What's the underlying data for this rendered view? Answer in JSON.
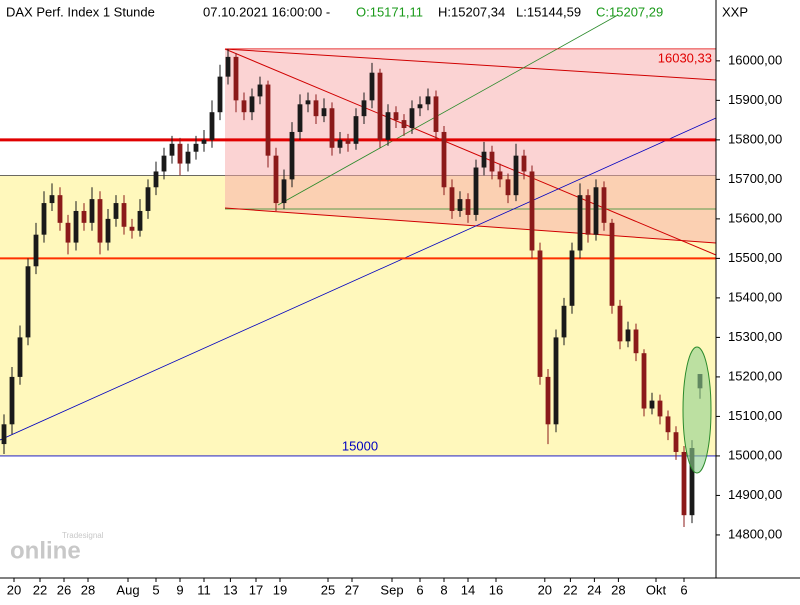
{
  "header": {
    "name": "DAX Perf. Index 1 Stunde",
    "datetime": "07.10.2021 16:00:00 -",
    "open": "O:15171,11",
    "high": "H:15207,34",
    "low": "L:15144,59",
    "close": "C:15207,29",
    "symbol": "XXP"
  },
  "watermark": {
    "brand": "online",
    "vendor": "Tradesignal"
  },
  "chart_data": {
    "type": "candlestick",
    "open": [
      15030,
      15080,
      15200,
      15300,
      15480,
      15560,
      15640,
      15660,
      15590,
      15540,
      15620,
      15590,
      15650,
      15540,
      15600,
      15640,
      15580,
      15570,
      15620,
      15680,
      15720,
      15760,
      15790,
      15740,
      15770,
      15790,
      15800,
      15870,
      15960,
      16010,
      15900,
      15870,
      15910,
      15940,
      15760,
      15640,
      15700,
      15820,
      15890,
      15900,
      15860,
      15880,
      15780,
      15800,
      15790,
      15860,
      15900,
      15970,
      15800,
      15870,
      15850,
      15830,
      15880,
      15890,
      15910,
      15820,
      15680,
      15620,
      15650,
      15610,
      15730,
      15770,
      15720,
      15700,
      15660,
      15760,
      15720,
      15520,
      15200,
      15080,
      15300,
      15380,
      15520,
      15660,
      15560,
      15680,
      15590,
      15380,
      15290,
      15320,
      15260,
      15120,
      15140,
      15100,
      15060,
      15010,
      14850,
      15171.11
    ],
    "high": [
      15105,
      15225,
      15330,
      15500,
      15590,
      15670,
      15690,
      15680,
      15610,
      15645,
      15640,
      15680,
      15670,
      15625,
      15660,
      15660,
      15600,
      15650,
      15700,
      15745,
      15780,
      15810,
      15805,
      15790,
      15810,
      15825,
      15900,
      15990,
      16030.33,
      16020,
      15920,
      15930,
      15960,
      15950,
      15780,
      15725,
      15845,
      15915,
      15920,
      15915,
      15905,
      15895,
      15820,
      15815,
      15880,
      15920,
      15995,
      15980,
      15890,
      15885,
      15865,
      15900,
      15910,
      15930,
      15925,
      15835,
      15700,
      15670,
      15665,
      15750,
      15795,
      15785,
      15740,
      15715,
      15790,
      15775,
      15735,
      15540,
      15220,
      15320,
      15400,
      15540,
      15690,
      15675,
      15700,
      15695,
      15600,
      15395,
      15340,
      15335,
      15270,
      15160,
      15155,
      15115,
      15075,
      15025,
      15040,
      15207.34
    ],
    "low": [
      15005,
      15055,
      15180,
      15280,
      15460,
      15540,
      15620,
      15570,
      15510,
      15520,
      15570,
      15570,
      15510,
      15520,
      15580,
      15560,
      15550,
      15555,
      15600,
      15660,
      15700,
      15740,
      15710,
      15720,
      15750,
      15770,
      15780,
      15850,
      15940,
      15870,
      15850,
      15850,
      15890,
      15730,
      15620,
      15625,
      15680,
      15800,
      15870,
      15840,
      15845,
      15760,
      15765,
      15770,
      15775,
      15840,
      15880,
      15780,
      15785,
      15830,
      15810,
      15815,
      15860,
      15875,
      15800,
      15660,
      15600,
      15605,
      15590,
      15595,
      15710,
      15700,
      15680,
      15640,
      15645,
      15700,
      15500,
      15180,
      15030,
      15060,
      15280,
      15360,
      15500,
      15540,
      15545,
      15570,
      15360,
      15270,
      15275,
      15240,
      15100,
      15105,
      15080,
      15040,
      14990,
      14820,
      14830,
      15144.59
    ],
    "close": [
      15080,
      15200,
      15300,
      15480,
      15560,
      15640,
      15660,
      15590,
      15540,
      15620,
      15590,
      15650,
      15540,
      15600,
      15640,
      15580,
      15570,
      15620,
      15680,
      15720,
      15760,
      15790,
      15740,
      15770,
      15790,
      15800,
      15870,
      15960,
      16010,
      15900,
      15870,
      15910,
      15940,
      15760,
      15640,
      15700,
      15820,
      15890,
      15900,
      15860,
      15880,
      15780,
      15800,
      15790,
      15860,
      15900,
      15970,
      15800,
      15870,
      15850,
      15830,
      15880,
      15890,
      15910,
      15820,
      15680,
      15620,
      15650,
      15610,
      15730,
      15770,
      15720,
      15700,
      15660,
      15760,
      15720,
      15520,
      15200,
      15080,
      15300,
      15380,
      15520,
      15660,
      15560,
      15680,
      15590,
      15380,
      15290,
      15320,
      15260,
      15120,
      15140,
      15100,
      15060,
      15010,
      14850,
      15020,
      15207.29
    ],
    "up_color": "#1a1a1a",
    "down_color": "#8b1a1a",
    "xlim": [
      -0.5,
      89
    ],
    "xticks": [
      {
        "value": 1.25,
        "label": "20"
      },
      {
        "value": 4.5,
        "label": "22"
      },
      {
        "value": 7.5,
        "label": "26"
      },
      {
        "value": 10.5,
        "label": "28"
      },
      {
        "value": 15.5,
        "label": "Aug"
      },
      {
        "value": 19,
        "label": "5"
      },
      {
        "value": 22,
        "label": "9"
      },
      {
        "value": 25,
        "label": "11"
      },
      {
        "value": 28.3,
        "label": "13"
      },
      {
        "value": 31.5,
        "label": "17"
      },
      {
        "value": 34.5,
        "label": "19"
      },
      {
        "value": 40.5,
        "label": "25"
      },
      {
        "value": 43.5,
        "label": "27"
      },
      {
        "value": 48.5,
        "label": "Sep"
      },
      {
        "value": 52,
        "label": "6"
      },
      {
        "value": 55,
        "label": "8"
      },
      {
        "value": 58,
        "label": "14"
      },
      {
        "value": 61.5,
        "label": "16"
      },
      {
        "value": 67.6,
        "label": "20"
      },
      {
        "value": 70.8,
        "label": "22"
      },
      {
        "value": 73.8,
        "label": "24"
      },
      {
        "value": 76.8,
        "label": "28"
      },
      {
        "value": 81.5,
        "label": "Okt"
      },
      {
        "value": 85,
        "label": "6"
      }
    ],
    "ylim": [
      14691,
      16154
    ],
    "yticks": [
      {
        "value": 14800,
        "label": "14800,00"
      },
      {
        "value": 14900,
        "label": "14900,00"
      },
      {
        "value": 15000,
        "label": "15000,00"
      },
      {
        "value": 15100,
        "label": "15100,00"
      },
      {
        "value": 15200,
        "label": "15200,00"
      },
      {
        "value": 15300,
        "label": "15300,00"
      },
      {
        "value": 15400,
        "label": "15400,00"
      },
      {
        "value": 15500,
        "label": "15500,00"
      },
      {
        "value": 15600,
        "label": "15600,00"
      },
      {
        "value": 15700,
        "label": "15700,00"
      },
      {
        "value": 15800,
        "label": "15800,00"
      },
      {
        "value": 15900,
        "label": "15900,00"
      },
      {
        "value": 16000,
        "label": "16000,00"
      }
    ],
    "zone": [
      15000,
      15710
    ],
    "hlines": [
      {
        "value": 15800,
        "color": "#e00000"
      },
      {
        "value": 15500,
        "color": "#ff3000"
      }
    ],
    "annotations": [
      {
        "value": 16030.33,
        "label": "16030,33",
        "color": "#e00000"
      },
      {
        "value": 15000,
        "label": "15000",
        "color": "#0000c0"
      }
    ]
  }
}
